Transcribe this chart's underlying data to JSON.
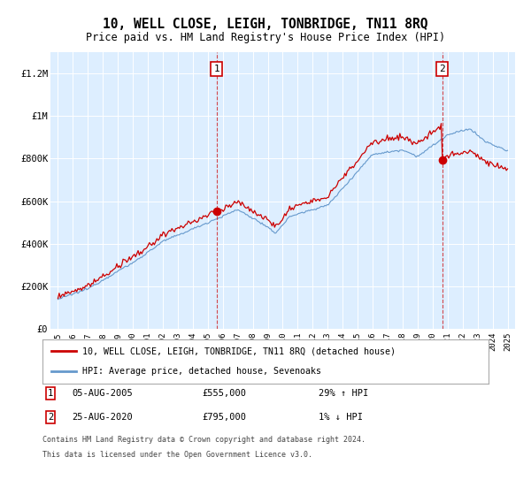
{
  "title": "10, WELL CLOSE, LEIGH, TONBRIDGE, TN11 8RQ",
  "subtitle": "Price paid vs. HM Land Registry's House Price Index (HPI)",
  "legend_line1": "10, WELL CLOSE, LEIGH, TONBRIDGE, TN11 8RQ (detached house)",
  "legend_line2": "HPI: Average price, detached house, Sevenoaks",
  "footnote1": "Contains HM Land Registry data © Crown copyright and database right 2024.",
  "footnote2": "This data is licensed under the Open Government Licence v3.0.",
  "annotation1_label": "1",
  "annotation1_date": "05-AUG-2005",
  "annotation1_price": "£555,000",
  "annotation1_hpi": "29% ↑ HPI",
  "annotation2_label": "2",
  "annotation2_date": "25-AUG-2020",
  "annotation2_price": "£795,000",
  "annotation2_hpi": "1% ↓ HPI",
  "red_color": "#cc0000",
  "blue_color": "#6699cc",
  "bg_color": "#ddeeff",
  "ylim": [
    0,
    1300000
  ],
  "yticks": [
    0,
    200000,
    400000,
    600000,
    800000,
    1000000,
    1200000
  ],
  "ytick_labels": [
    "£0",
    "£200K",
    "£400K",
    "£600K",
    "£800K",
    "£1M",
    "£1.2M"
  ],
  "year_start": 1995,
  "year_end": 2025,
  "marker1_year": 2005.6,
  "marker1_value": 555000,
  "marker2_year": 2020.65,
  "marker2_value": 795000
}
